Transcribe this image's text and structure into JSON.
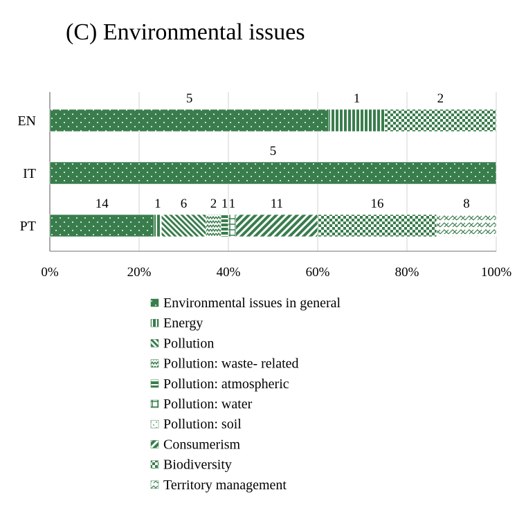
{
  "chart_data": {
    "type": "bar",
    "orientation": "horizontal",
    "stacked": "percent",
    "title": "(C) Environmental issues",
    "categories": [
      "EN",
      "IT",
      "PT"
    ],
    "x_ticks": [
      "0%",
      "20%",
      "40%",
      "60%",
      "80%",
      "100%"
    ],
    "xlim": [
      0,
      100
    ],
    "grid": true,
    "legend_position": "bottom",
    "series": [
      {
        "name": "Environmental issues in general",
        "pattern": "dots",
        "values": [
          5,
          5,
          14
        ]
      },
      {
        "name": "Energy",
        "pattern": "vertical-stripes",
        "values": [
          1,
          0,
          1
        ]
      },
      {
        "name": "Pollution",
        "pattern": "diagonal-down",
        "values": [
          0,
          0,
          6
        ]
      },
      {
        "name": "Pollution: waste- related",
        "pattern": "zigzag",
        "values": [
          0,
          0,
          2
        ]
      },
      {
        "name": "Pollution: atmospheric",
        "pattern": "horizontal-stripes",
        "values": [
          0,
          0,
          1
        ]
      },
      {
        "name": "Pollution: water",
        "pattern": "cross-t",
        "values": [
          0,
          0,
          1
        ]
      },
      {
        "name": "Pollution: soil",
        "pattern": "sparse-dots",
        "values": [
          0,
          0,
          0
        ]
      },
      {
        "name": "Consumerism",
        "pattern": "diagonal-up",
        "values": [
          0,
          0,
          11
        ]
      },
      {
        "name": "Biodiversity",
        "pattern": "checker",
        "values": [
          2,
          0,
          16
        ]
      },
      {
        "name": "Territory management",
        "pattern": "scales",
        "values": [
          0,
          0,
          8
        ]
      }
    ],
    "colors": {
      "fill": "#3a7d4d",
      "paper": "#ffffff",
      "grid": "#d0d0d0",
      "axis": "#8c8c8c"
    }
  }
}
